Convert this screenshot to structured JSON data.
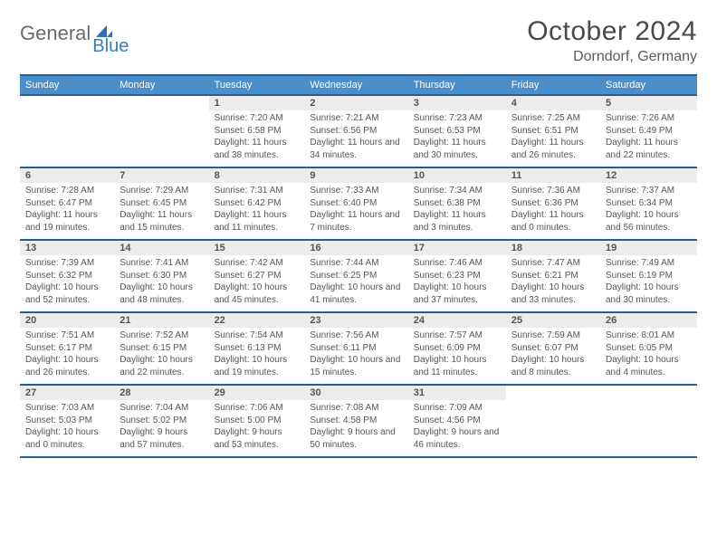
{
  "brand": {
    "part1": "General",
    "part2": "Blue"
  },
  "title": "October 2024",
  "location": "Dorndorf, Germany",
  "colors": {
    "header_bg": "#4a8fc9",
    "header_border": "#2a5c8f",
    "daynum_bg": "#ececec",
    "text": "#555555",
    "brand_gray": "#6a6a6a",
    "brand_blue": "#3b7bbf"
  },
  "day_names": [
    "Sunday",
    "Monday",
    "Tuesday",
    "Wednesday",
    "Thursday",
    "Friday",
    "Saturday"
  ],
  "weeks": [
    [
      null,
      null,
      {
        "n": "1",
        "sr": "7:20 AM",
        "ss": "6:58 PM",
        "dl": "11 hours and 38 minutes."
      },
      {
        "n": "2",
        "sr": "7:21 AM",
        "ss": "6:56 PM",
        "dl": "11 hours and 34 minutes."
      },
      {
        "n": "3",
        "sr": "7:23 AM",
        "ss": "6:53 PM",
        "dl": "11 hours and 30 minutes."
      },
      {
        "n": "4",
        "sr": "7:25 AM",
        "ss": "6:51 PM",
        "dl": "11 hours and 26 minutes."
      },
      {
        "n": "5",
        "sr": "7:26 AM",
        "ss": "6:49 PM",
        "dl": "11 hours and 22 minutes."
      }
    ],
    [
      {
        "n": "6",
        "sr": "7:28 AM",
        "ss": "6:47 PM",
        "dl": "11 hours and 19 minutes."
      },
      {
        "n": "7",
        "sr": "7:29 AM",
        "ss": "6:45 PM",
        "dl": "11 hours and 15 minutes."
      },
      {
        "n": "8",
        "sr": "7:31 AM",
        "ss": "6:42 PM",
        "dl": "11 hours and 11 minutes."
      },
      {
        "n": "9",
        "sr": "7:33 AM",
        "ss": "6:40 PM",
        "dl": "11 hours and 7 minutes."
      },
      {
        "n": "10",
        "sr": "7:34 AM",
        "ss": "6:38 PM",
        "dl": "11 hours and 3 minutes."
      },
      {
        "n": "11",
        "sr": "7:36 AM",
        "ss": "6:36 PM",
        "dl": "11 hours and 0 minutes."
      },
      {
        "n": "12",
        "sr": "7:37 AM",
        "ss": "6:34 PM",
        "dl": "10 hours and 56 minutes."
      }
    ],
    [
      {
        "n": "13",
        "sr": "7:39 AM",
        "ss": "6:32 PM",
        "dl": "10 hours and 52 minutes."
      },
      {
        "n": "14",
        "sr": "7:41 AM",
        "ss": "6:30 PM",
        "dl": "10 hours and 48 minutes."
      },
      {
        "n": "15",
        "sr": "7:42 AM",
        "ss": "6:27 PM",
        "dl": "10 hours and 45 minutes."
      },
      {
        "n": "16",
        "sr": "7:44 AM",
        "ss": "6:25 PM",
        "dl": "10 hours and 41 minutes."
      },
      {
        "n": "17",
        "sr": "7:46 AM",
        "ss": "6:23 PM",
        "dl": "10 hours and 37 minutes."
      },
      {
        "n": "18",
        "sr": "7:47 AM",
        "ss": "6:21 PM",
        "dl": "10 hours and 33 minutes."
      },
      {
        "n": "19",
        "sr": "7:49 AM",
        "ss": "6:19 PM",
        "dl": "10 hours and 30 minutes."
      }
    ],
    [
      {
        "n": "20",
        "sr": "7:51 AM",
        "ss": "6:17 PM",
        "dl": "10 hours and 26 minutes."
      },
      {
        "n": "21",
        "sr": "7:52 AM",
        "ss": "6:15 PM",
        "dl": "10 hours and 22 minutes."
      },
      {
        "n": "22",
        "sr": "7:54 AM",
        "ss": "6:13 PM",
        "dl": "10 hours and 19 minutes."
      },
      {
        "n": "23",
        "sr": "7:56 AM",
        "ss": "6:11 PM",
        "dl": "10 hours and 15 minutes."
      },
      {
        "n": "24",
        "sr": "7:57 AM",
        "ss": "6:09 PM",
        "dl": "10 hours and 11 minutes."
      },
      {
        "n": "25",
        "sr": "7:59 AM",
        "ss": "6:07 PM",
        "dl": "10 hours and 8 minutes."
      },
      {
        "n": "26",
        "sr": "8:01 AM",
        "ss": "6:05 PM",
        "dl": "10 hours and 4 minutes."
      }
    ],
    [
      {
        "n": "27",
        "sr": "7:03 AM",
        "ss": "5:03 PM",
        "dl": "10 hours and 0 minutes."
      },
      {
        "n": "28",
        "sr": "7:04 AM",
        "ss": "5:02 PM",
        "dl": "9 hours and 57 minutes."
      },
      {
        "n": "29",
        "sr": "7:06 AM",
        "ss": "5:00 PM",
        "dl": "9 hours and 53 minutes."
      },
      {
        "n": "30",
        "sr": "7:08 AM",
        "ss": "4:58 PM",
        "dl": "9 hours and 50 minutes."
      },
      {
        "n": "31",
        "sr": "7:09 AM",
        "ss": "4:56 PM",
        "dl": "9 hours and 46 minutes."
      },
      null,
      null
    ]
  ]
}
